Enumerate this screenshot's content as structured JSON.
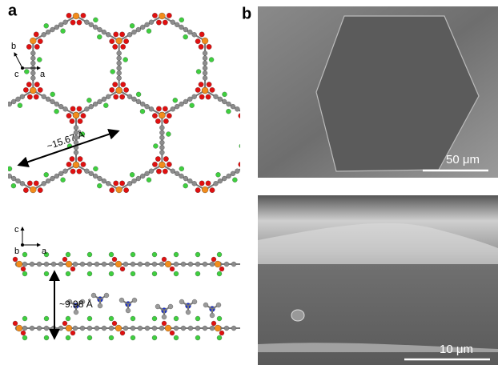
{
  "panel_a": {
    "label": "a",
    "top_axes": {
      "up": "b",
      "out": "c",
      "right": "a"
    },
    "top_dimension": "~15.67 Å",
    "bottom_axes": {
      "up": "c",
      "out": "b",
      "right": "a"
    },
    "bottom_dimension": "~9.98 Å"
  },
  "panel_b": {
    "label": "b",
    "top_scale_bar": "50 μm",
    "bottom_scale_bar": "10 μm"
  }
}
